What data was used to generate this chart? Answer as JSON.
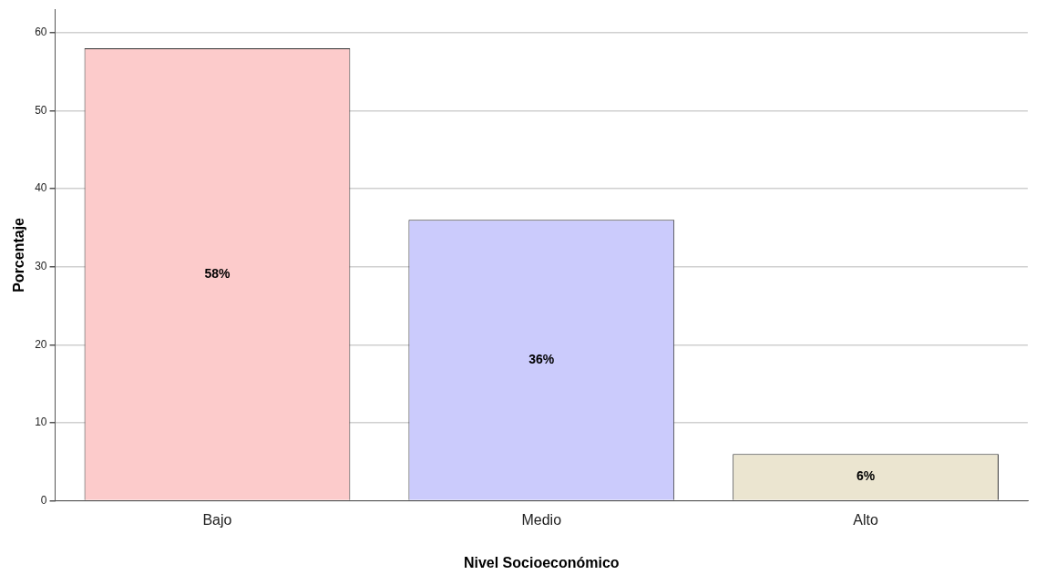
{
  "chart_data": {
    "type": "bar",
    "xlabel": "Nivel Socioeconómico",
    "ylabel": "Porcentaje",
    "categories": [
      "Bajo",
      "Medio",
      "Alto"
    ],
    "values": [
      58,
      36,
      6
    ],
    "colors": [
      "#fccbcb",
      "#cbcbfc",
      "#ebe5d0"
    ],
    "value_labels": [
      "58%",
      "36%",
      "6%"
    ],
    "ylim": [
      0,
      63
    ],
    "yticks": [
      0,
      10,
      20,
      30,
      40,
      50,
      60
    ],
    "grid": "y",
    "legend": false
  }
}
